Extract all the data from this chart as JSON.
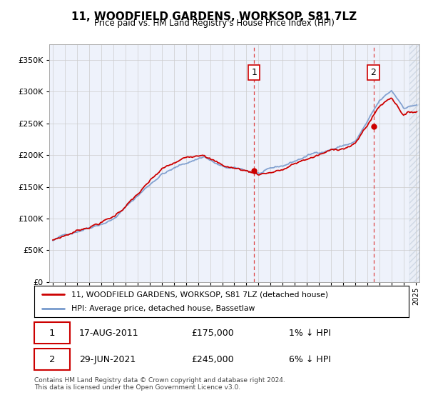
{
  "title": "11, WOODFIELD GARDENS, WORKSOP, S81 7LZ",
  "subtitle": "Price paid vs. HM Land Registry's House Price Index (HPI)",
  "ytick_values": [
    0,
    50000,
    100000,
    150000,
    200000,
    250000,
    300000,
    350000
  ],
  "ylim": [
    0,
    375000
  ],
  "xlim_start": 1994.7,
  "xlim_end": 2025.3,
  "legend_line1": "11, WOODFIELD GARDENS, WORKSOP, S81 7LZ (detached house)",
  "legend_line2": "HPI: Average price, detached house, Bassetlaw",
  "transaction1_date": "17-AUG-2011",
  "transaction1_price": "£175,000",
  "transaction1_detail": "1% ↓ HPI",
  "transaction1_x": 2011.63,
  "transaction1_y": 175000,
  "transaction2_date": "29-JUN-2021",
  "transaction2_price": "£245,000",
  "transaction2_detail": "6% ↓ HPI",
  "transaction2_x": 2021.5,
  "transaction2_y": 245000,
  "hpi_color": "#7799cc",
  "price_color": "#cc0000",
  "vline_color": "#dd4444",
  "dot_color": "#cc0000",
  "footer_text": "Contains HM Land Registry data © Crown copyright and database right 2024.\nThis data is licensed under the Open Government Licence v3.0.",
  "plot_bg_color": "#eef2fb",
  "grid_color": "#cccccc",
  "hatch_color": "#d0d8e8"
}
